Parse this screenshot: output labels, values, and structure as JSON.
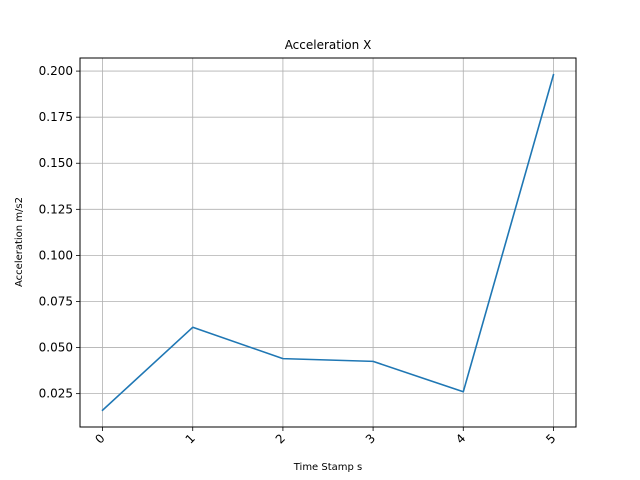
{
  "chart_data": {
    "type": "line",
    "title": "Acceleration X",
    "xlabel": "Time Stamp s",
    "ylabel": "Acceleration m/s2",
    "x": [
      0,
      1,
      2,
      3,
      4,
      5
    ],
    "x_tick_labels": [
      "0",
      "1",
      "2",
      "3",
      "4",
      "5"
    ],
    "series": [
      {
        "values": [
          0.016,
          0.061,
          0.044,
          0.0425,
          0.026,
          0.198
        ],
        "color": "#1f77b4"
      }
    ],
    "xlim": [
      -0.25,
      5.25
    ],
    "ylim": [
      0.0069,
      0.2071
    ],
    "y_ticks": [
      0.025,
      0.05,
      0.075,
      0.1,
      0.125,
      0.15,
      0.175,
      0.2
    ],
    "y_tick_labels": [
      "0.025",
      "0.050",
      "0.075",
      "0.100",
      "0.125",
      "0.150",
      "0.175",
      "0.200"
    ],
    "grid": true
  }
}
